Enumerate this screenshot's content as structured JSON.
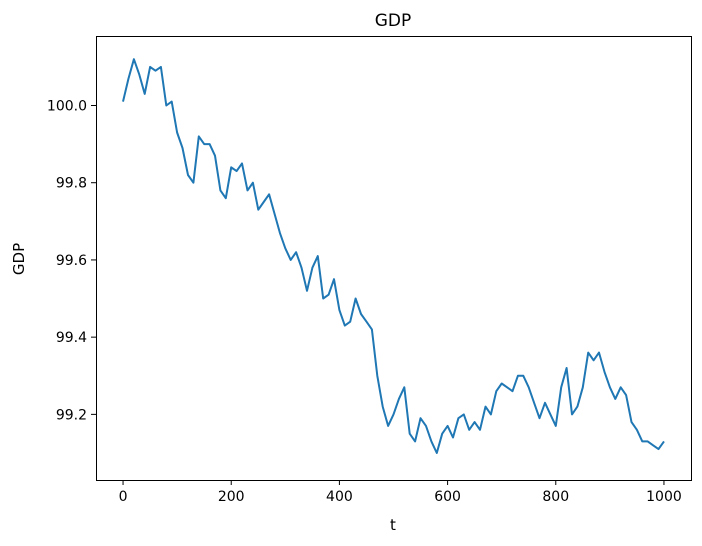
{
  "chart_data": {
    "type": "line",
    "title": "GDP",
    "xlabel": "t",
    "ylabel": "GDP",
    "xlim": [
      -50,
      1050
    ],
    "ylim": [
      99.03,
      100.18
    ],
    "grid": false,
    "xticks": [
      0,
      200,
      400,
      600,
      800,
      1000
    ],
    "xtick_labels": [
      "0",
      "200",
      "400",
      "600",
      "800",
      "1000"
    ],
    "yticks": [
      99.2,
      99.4,
      99.6,
      99.8,
      100.0
    ],
    "ytick_labels": [
      "99.2",
      "99.4",
      "99.6",
      "99.8",
      "100.0"
    ],
    "series": [
      {
        "color": "#1f77b4",
        "x": [
          0,
          10,
          20,
          30,
          40,
          50,
          60,
          70,
          80,
          90,
          100,
          110,
          120,
          130,
          140,
          150,
          160,
          170,
          180,
          190,
          200,
          210,
          220,
          230,
          240,
          250,
          260,
          270,
          280,
          290,
          300,
          310,
          320,
          330,
          340,
          350,
          360,
          370,
          380,
          390,
          400,
          410,
          420,
          430,
          440,
          450,
          460,
          470,
          480,
          490,
          500,
          510,
          520,
          530,
          540,
          550,
          560,
          570,
          580,
          590,
          600,
          610,
          620,
          630,
          640,
          650,
          660,
          670,
          680,
          690,
          700,
          710,
          720,
          730,
          740,
          750,
          760,
          770,
          780,
          790,
          800,
          810,
          820,
          830,
          840,
          850,
          860,
          870,
          880,
          890,
          900,
          910,
          920,
          930,
          940,
          950,
          960,
          970,
          980,
          990,
          1000
        ],
        "values": [
          100.01,
          100.07,
          100.12,
          100.08,
          100.03,
          100.1,
          100.09,
          100.1,
          100.0,
          100.01,
          99.93,
          99.89,
          99.82,
          99.8,
          99.92,
          99.9,
          99.9,
          99.87,
          99.78,
          99.76,
          99.84,
          99.83,
          99.85,
          99.78,
          99.8,
          99.73,
          99.75,
          99.77,
          99.72,
          99.67,
          99.63,
          99.6,
          99.62,
          99.58,
          99.52,
          99.58,
          99.61,
          99.5,
          99.51,
          99.55,
          99.47,
          99.43,
          99.44,
          99.5,
          99.46,
          99.44,
          99.42,
          99.3,
          99.22,
          99.17,
          99.2,
          99.24,
          99.27,
          99.15,
          99.13,
          99.19,
          99.17,
          99.13,
          99.1,
          99.15,
          99.17,
          99.14,
          99.19,
          99.2,
          99.16,
          99.18,
          99.16,
          99.22,
          99.2,
          99.26,
          99.28,
          99.27,
          99.26,
          99.3,
          99.3,
          99.27,
          99.23,
          99.19,
          99.23,
          99.2,
          99.17,
          99.27,
          99.32,
          99.2,
          99.22,
          99.27,
          99.36,
          99.34,
          99.36,
          99.31,
          99.27,
          99.24,
          99.27,
          99.25,
          99.18,
          99.16,
          99.13,
          99.13,
          99.12,
          99.11,
          99.13
        ]
      }
    ]
  }
}
